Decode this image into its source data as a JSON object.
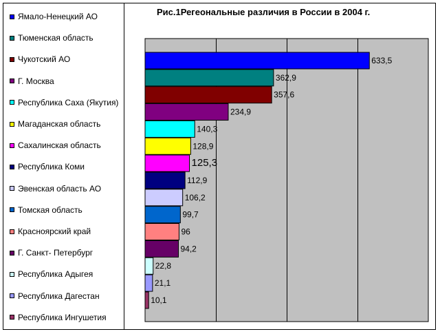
{
  "chart_data": {
    "type": "bar",
    "orientation": "horizontal",
    "title": "Рис.1Регеональные различия в России в 2004 г.",
    "xlim": [
      0,
      800
    ],
    "gridlines": [
      0,
      200,
      400,
      600,
      800
    ],
    "grid": true,
    "legend_position": "left",
    "plot_background": "#c0c0c0",
    "categories": [
      "Ямало-Ненецкий АО",
      "Тюменская область",
      "Чукотский АО",
      "Г. Москва",
      "Республика Саха (Якутия)",
      "Магаданская область",
      "Сахалинская область",
      "Республика Коми",
      "Эвенская область АО",
      "Томская область",
      "Красноярский край",
      "Г. Санкт- Петербург",
      "Республика Адыгея",
      "Республика Дагестан",
      "Республика Ингушетия"
    ],
    "values": [
      633.5,
      362.9,
      357.6,
      234.9,
      140.3,
      128.9,
      125.3,
      112.9,
      106.2,
      99.7,
      96,
      94.2,
      22.8,
      21.1,
      10.1
    ],
    "labels": [
      "633,5",
      "362,9",
      "357,6",
      "234,9",
      "140,3",
      "128,9",
      "125,3",
      "112,9",
      "106,2",
      "99,7",
      "96",
      "94,2",
      "22,8",
      "21,1",
      "10,1"
    ],
    "colors": [
      "#0000ff",
      "#008080",
      "#800000",
      "#800080",
      "#00ffff",
      "#ffff00",
      "#ff00ff",
      "#000080",
      "#ccccff",
      "#0066cc",
      "#ff8080",
      "#660066",
      "#ccffff",
      "#9999ff",
      "#993366"
    ]
  }
}
